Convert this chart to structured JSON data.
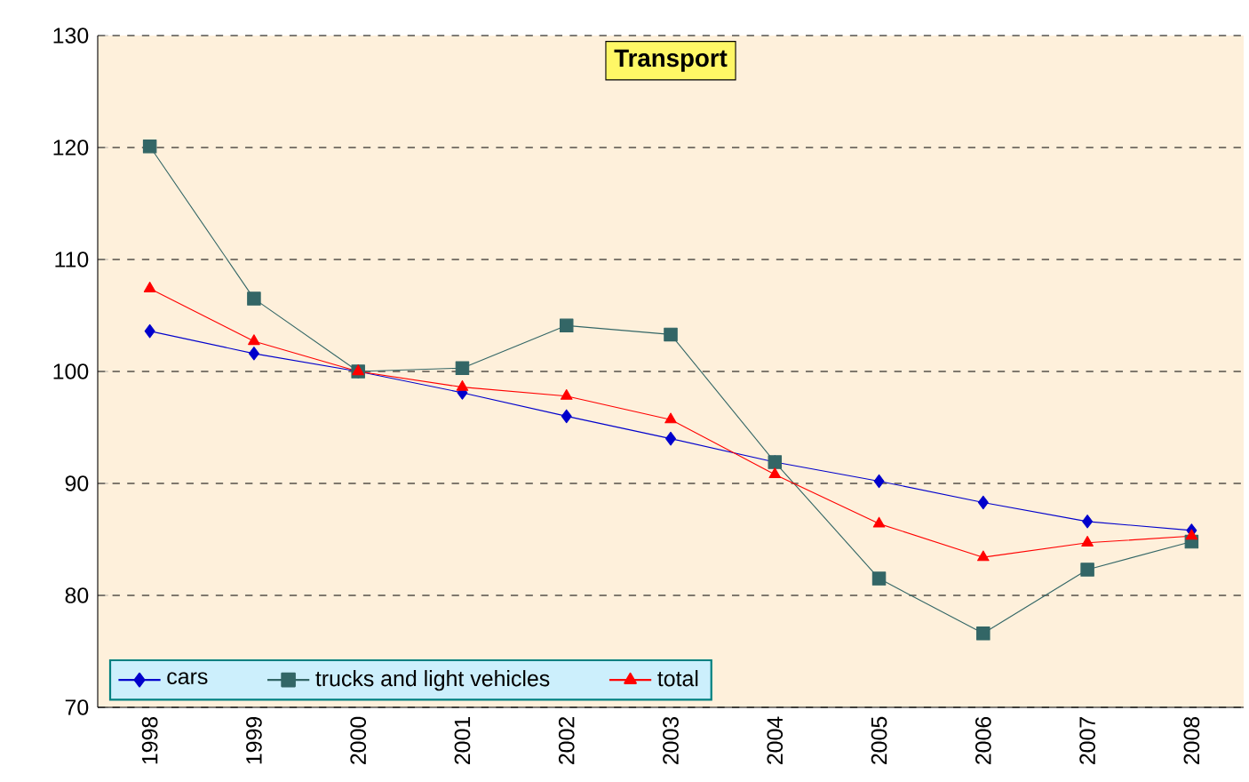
{
  "chart_data": {
    "type": "line",
    "title": "Transport",
    "categories": [
      "1998",
      "1999",
      "2000",
      "2001",
      "2002",
      "2003",
      "2004",
      "2005",
      "2006",
      "2007",
      "2008"
    ],
    "series": [
      {
        "name": "cars",
        "color": "#0000cc",
        "marker": "diamond",
        "values": [
          103.6,
          101.6,
          100,
          98.1,
          96.0,
          94.0,
          91.9,
          90.2,
          88.3,
          86.6,
          85.8
        ]
      },
      {
        "name": "trucks and light vehicles",
        "color": "#336666",
        "marker": "square",
        "values": [
          120.1,
          106.5,
          100,
          100.3,
          104.1,
          103.3,
          91.9,
          81.5,
          76.6,
          82.3,
          84.8
        ]
      },
      {
        "name": "total",
        "color": "#ff0000",
        "marker": "triangle",
        "values": [
          107.4,
          102.7,
          100,
          98.6,
          97.8,
          95.7,
          90.8,
          86.4,
          83.4,
          84.7,
          85.3
        ]
      }
    ],
    "ylim": [
      70,
      130
    ],
    "yticks": [
      70,
      80,
      90,
      100,
      110,
      120,
      130
    ],
    "grid": "y",
    "legend": "bottom left"
  }
}
